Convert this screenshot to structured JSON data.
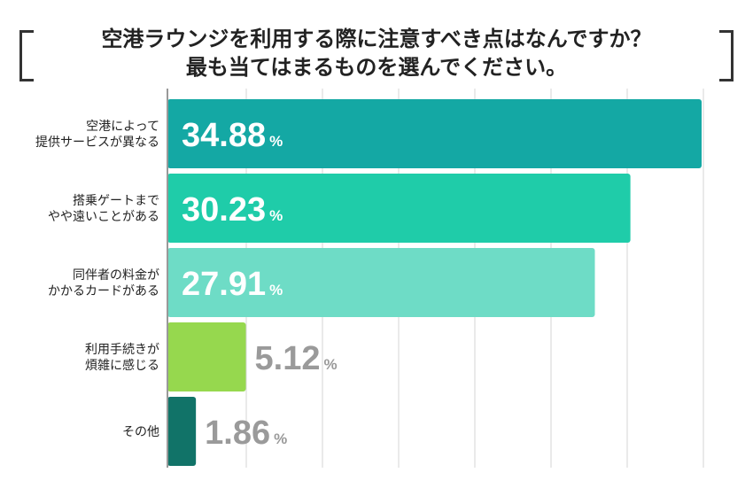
{
  "title": {
    "line1": "空港ラウンジを利用する際に注意すべき点はなんですか？",
    "line2": "最も当てはまるものを選んでください。"
  },
  "chart_data": {
    "type": "bar",
    "orientation": "horizontal",
    "categories": [
      [
        "空港によって",
        "提供サービスが異なる"
      ],
      [
        "搭乗ゲートまで",
        "やや遠いことがある"
      ],
      [
        "同伴者の料金が",
        "かかるカードがある"
      ],
      [
        "利用手続きが",
        "煩雑に感じる"
      ],
      [
        "その他"
      ]
    ],
    "values": [
      34.88,
      30.23,
      27.91,
      5.12,
      1.86
    ],
    "unit": "%",
    "colors": [
      "#14a8a4",
      "#1fcca9",
      "#6edcc6",
      "#96d84e",
      "#117368"
    ],
    "xlim": [
      0,
      35
    ],
    "grid": true
  }
}
